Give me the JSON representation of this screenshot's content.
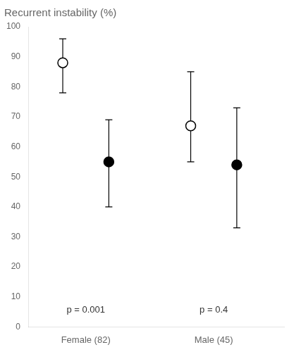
{
  "chart_data": {
    "type": "dot",
    "title": "Recurrent instability (%)",
    "categories": [
      "Female (82)",
      "Male (45)"
    ],
    "series": [
      {
        "color": "black",
        "marker": "open_circle",
        "values": [
          88,
          67
        ],
        "ci_low": [
          78,
          55
        ],
        "ci_high": [
          96,
          85
        ]
      },
      {
        "color": "black",
        "marker": "circle",
        "values": [
          55,
          54
        ],
        "ci_low": [
          40,
          33
        ],
        "ci_high": [
          69,
          73
        ]
      }
    ],
    "annotations": [
      {
        "text": "p = 0.001",
        "x": "Female (82)",
        "y": 4
      },
      {
        "text": "p = 0.4",
        "x": "Male (45)",
        "y": 4
      }
    ],
    "ylim": [
      0,
      100
    ],
    "yticks": [
      0,
      10,
      20,
      30,
      40,
      50,
      60,
      70,
      80,
      90,
      100
    ],
    "grid": false
  }
}
